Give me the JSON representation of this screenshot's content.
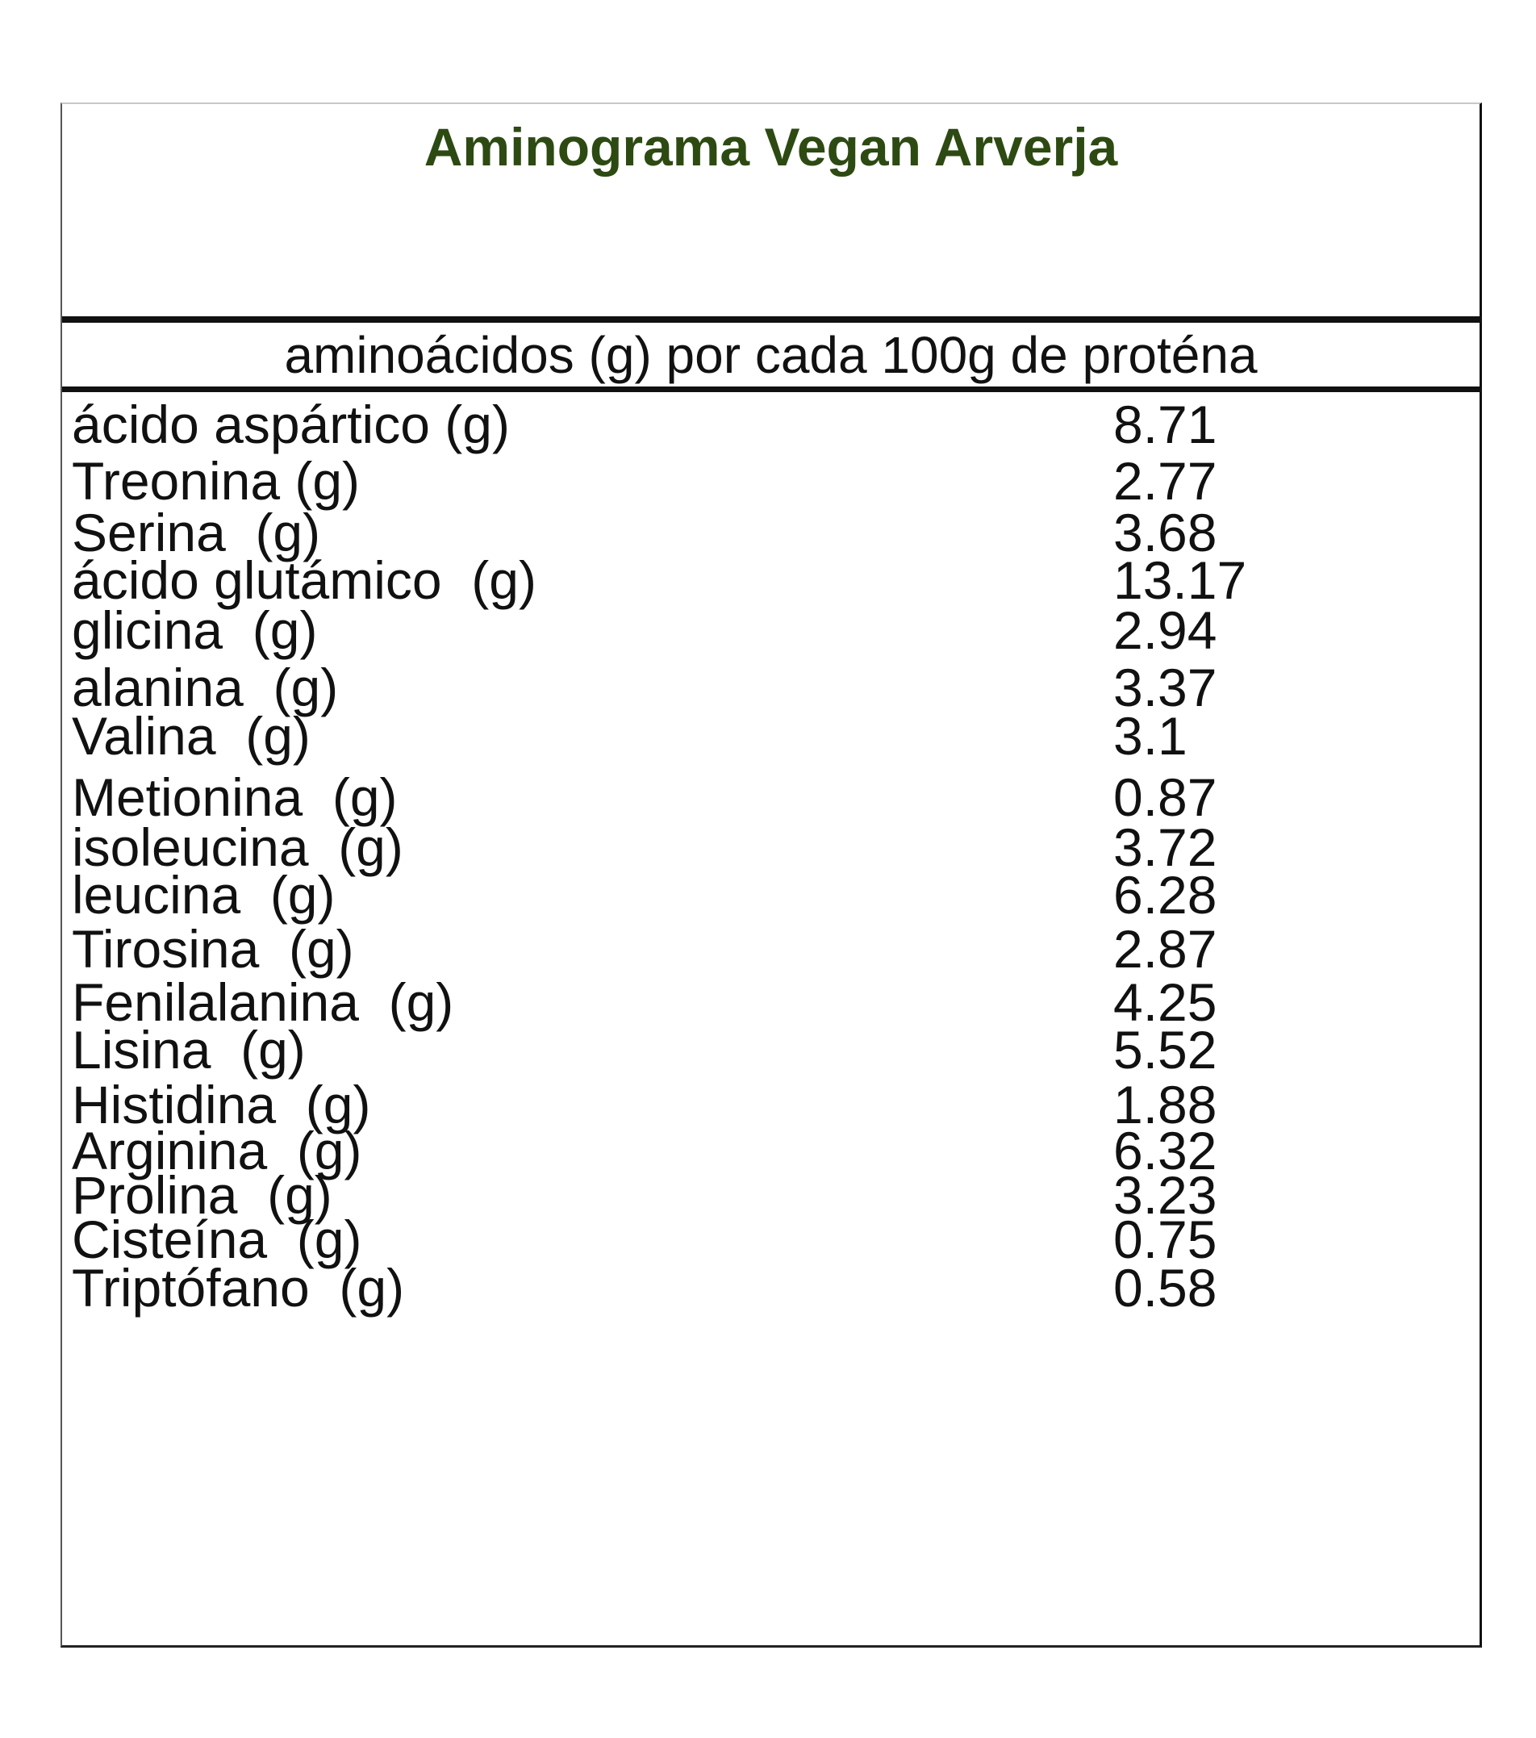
{
  "table": {
    "title": "Aminograma Vegan Arverja",
    "subtitle": "aminoácidos (g) por cada 100g de proténa",
    "rows": [
      {
        "name": "ácido aspártico (g)",
        "value": "8.71"
      },
      {
        "name": "Treonina (g)",
        "value": "2.77"
      },
      {
        "name": "Serina  (g)",
        "value": "3.68"
      },
      {
        "name": "ácido glutámico  (g)",
        "value": "13.17"
      },
      {
        "name": "glicina  (g)",
        "value": "2.94"
      },
      {
        "name": "alanina  (g)",
        "value": "3.37"
      },
      {
        "name": "Valina  (g)",
        "value": "3.1"
      },
      {
        "name": "Metionina  (g)",
        "value": "0.87"
      },
      {
        "name": "isoleucina  (g)",
        "value": "3.72"
      },
      {
        "name": "leucina  (g)",
        "value": "6.28"
      },
      {
        "name": "Tirosina  (g)",
        "value": "2.87"
      },
      {
        "name": "Fenilalanina  (g)",
        "value": "4.25"
      },
      {
        "name": "Lisina  (g)",
        "value": "5.52"
      },
      {
        "name": "Histidina  (g)",
        "value": "1.88"
      },
      {
        "name": "Arginina  (g)",
        "value": "6.32"
      },
      {
        "name": "Prolina  (g)",
        "value": "3.23"
      },
      {
        "name": "Cisteína  (g)",
        "value": "0.75"
      },
      {
        "name": "Triptófano  (g)",
        "value": "0.58"
      }
    ]
  },
  "colors": {
    "title": "#2d4a12",
    "text": "#111111",
    "rule": "#111111"
  }
}
